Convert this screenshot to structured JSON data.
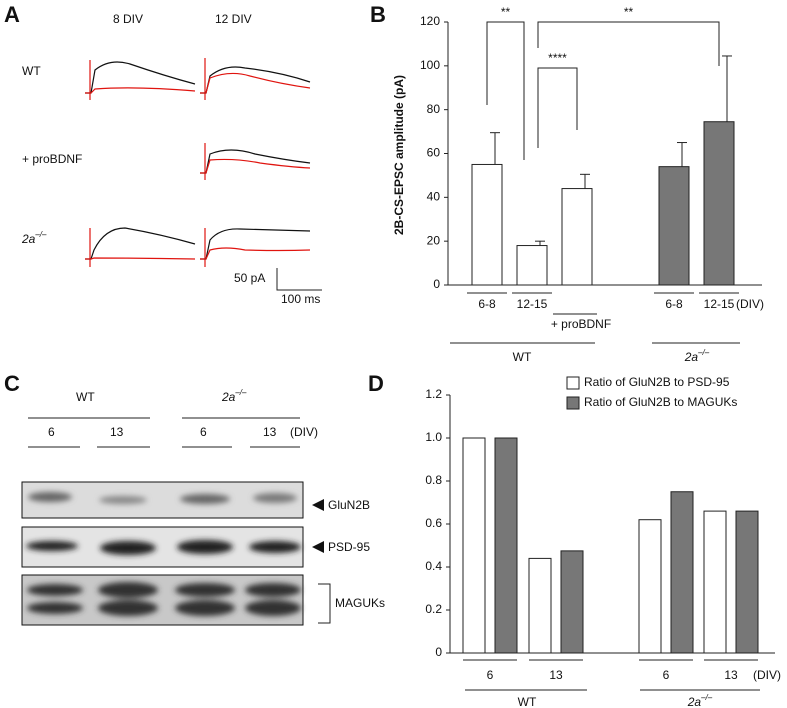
{
  "panel_a": {
    "letter": "A",
    "columns": [
      "8 DIV",
      "12 DIV"
    ],
    "rows": [
      "WT",
      "+ proBDNF",
      {
        "base": "2a",
        "sup": "–/–"
      }
    ],
    "scale_y": "50 pA",
    "scale_x": "100 ms"
  },
  "panel_c": {
    "letter": "C",
    "genotypes": [
      "WT",
      {
        "base": "2a",
        "sup": "–/–"
      }
    ],
    "lanes": [
      "6",
      "13",
      "6",
      "13"
    ],
    "unit": "(DIV)",
    "bands": [
      "GluN2B",
      "PSD-95",
      "MAGUKs"
    ]
  },
  "chart_data": [
    {
      "type": "bar",
      "letter": "B",
      "ylabel": "2B-CS-EPSC amplitude (pA)",
      "categories": [
        "6-8",
        "12-15",
        null,
        "6-8",
        "12-15"
      ],
      "values": [
        55,
        18,
        44,
        54,
        74.5
      ],
      "errors": [
        14.5,
        2,
        6.5,
        11,
        30
      ],
      "colors": [
        "#ffffff",
        "#ffffff",
        "#ffffff",
        "#777777",
        "#777777"
      ],
      "ylim": [
        0,
        120
      ],
      "yticks": [
        0,
        20,
        40,
        60,
        80,
        100,
        120
      ],
      "unit": "(DIV)",
      "treatment": "+ proBDNF",
      "groups": [
        "WT",
        {
          "base": "2a",
          "sup": "–/–"
        }
      ],
      "significance": [
        "**",
        "****",
        "**"
      ]
    },
    {
      "type": "grouped_bar",
      "letter": "D",
      "categories": [
        "6",
        "13",
        "6",
        "13"
      ],
      "series": [
        {
          "name": "Ratio of GluN2B to PSD-95",
          "color": "#ffffff",
          "values": [
            1.0,
            0.44,
            0.62,
            0.66
          ]
        },
        {
          "name": "Ratio of GluN2B to MAGUKs",
          "color": "#777777",
          "values": [
            1.0,
            0.475,
            0.75,
            0.66
          ]
        }
      ],
      "ylim": [
        0,
        1.2
      ],
      "yticks": [
        0,
        0.2,
        0.4,
        0.6,
        0.8,
        {
          "value": 1,
          "label": "1.0"
        },
        1.2
      ],
      "unit": "(DIV)",
      "groups": [
        "WT",
        {
          "base": "2a",
          "sup": "–/–"
        }
      ]
    }
  ]
}
